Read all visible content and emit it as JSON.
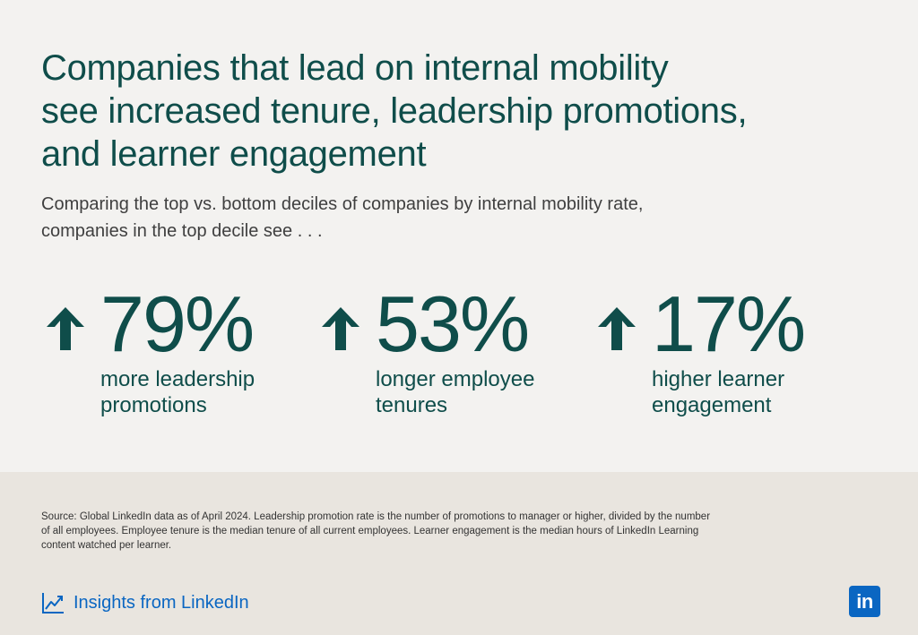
{
  "headline": [
    "Companies that lead on internal mobility",
    "see increased tenure, leadership promotions,",
    "and learner engagement"
  ],
  "subtitle": [
    "Comparing the top vs. bottom deciles of companies by internal mobility rate,",
    "companies in the top decile see . . ."
  ],
  "stats": [
    {
      "value": "79%",
      "icon": "arrow-up-icon",
      "desc": [
        "more leadership",
        "promotions"
      ]
    },
    {
      "value": "53%",
      "icon": "arrow-up-icon",
      "desc": [
        "longer employee",
        "tenures"
      ]
    },
    {
      "value": "17%",
      "icon": "arrow-up-icon",
      "desc": [
        "higher learner",
        "engagement"
      ]
    }
  ],
  "source": [
    "Source: Global LinkedIn data as of April 2024. Leadership promotion rate is the number of promotions to manager or higher, divided by the number",
    "of all employees. Employee tenure is the median tenure of all current employees. Learner engagement is the median hours of LinkedIn Learning",
    "content watched per learner."
  ],
  "footer": {
    "brand_text": "Insights from LinkedIn",
    "brand_icon": "line-chart-icon",
    "logo_text": "in",
    "logo_icon": "linkedin-logo-icon"
  },
  "colors": {
    "primary_teal": "#0f4d4a",
    "linkedin_blue": "#0a66c2",
    "top_background": "#f3f2f0",
    "bottom_background": "#e9e5df"
  }
}
